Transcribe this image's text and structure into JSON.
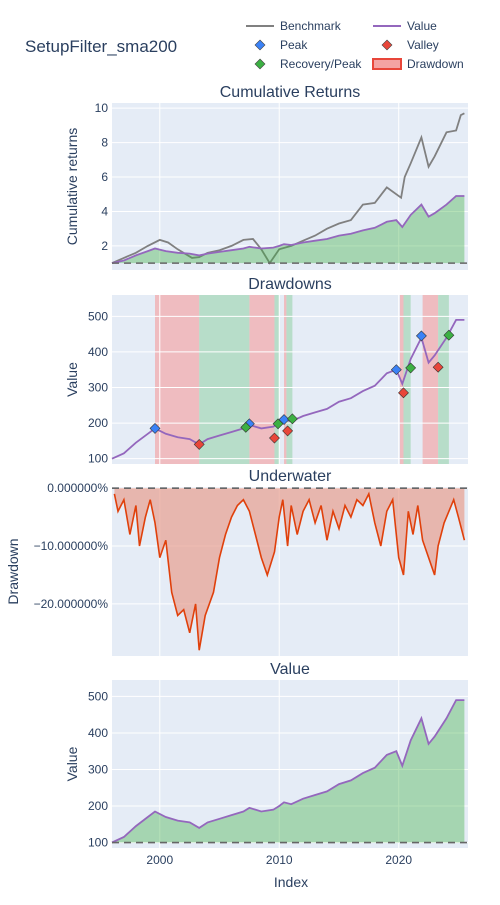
{
  "title": "SetupFilter_sma200",
  "legend": [
    {
      "label": "Benchmark",
      "kind": "line",
      "color": "#808080"
    },
    {
      "label": "Value",
      "kind": "line",
      "color": "#9467bd"
    },
    {
      "label": "Peak",
      "kind": "diamond",
      "color": "#3b82f6"
    },
    {
      "label": "Valley",
      "kind": "diamond",
      "color": "#e8463a"
    },
    {
      "label": "Recovery/Peak",
      "kind": "diamond",
      "color": "#3cb043"
    },
    {
      "label": "Drawdown",
      "kind": "band",
      "color": "#e8463a"
    }
  ],
  "colors": {
    "plot_bg": "#e5ecf6",
    "grid": "#ffffff",
    "value": "#9467bd",
    "benchmark": "#808080",
    "fill_green": "#3cb043",
    "drawdown": "#e0400b",
    "peak": "#3b82f6",
    "valley": "#e8463a",
    "recovery": "#3cb043",
    "band_red": "#f4a3a3",
    "band_green": "#9ed6b0",
    "text": "#2a3f5f"
  },
  "x_axis": {
    "label": "Index",
    "range": [
      1996,
      2025.8
    ],
    "ticks": [
      2000,
      2010,
      2020
    ]
  },
  "chart_data": [
    {
      "type": "line",
      "title": "Cumulative Returns",
      "ylabel": "Cumulative returns",
      "ylim": [
        0.6,
        10.3
      ],
      "yticks": [
        2,
        4,
        6,
        8,
        10
      ],
      "baseline": 1,
      "series": [
        {
          "name": "Benchmark",
          "x": [
            1996,
            1997,
            1998,
            1999,
            2000,
            2000.7,
            2001.5,
            2002.7,
            2003.3,
            2004,
            2005,
            2006,
            2007,
            2007.8,
            2008.5,
            2009.2,
            2010,
            2011,
            2012,
            2013,
            2014,
            2015,
            2016,
            2017,
            2018,
            2019,
            2020.2,
            2020.5,
            2021,
            2021.9,
            2022.5,
            2023,
            2024,
            2024.8,
            2025.2,
            2025.5
          ],
          "y": [
            1.0,
            1.3,
            1.6,
            2.0,
            2.35,
            2.2,
            1.8,
            1.3,
            1.35,
            1.6,
            1.75,
            2.0,
            2.35,
            2.4,
            1.8,
            1.0,
            1.8,
            2.0,
            2.3,
            2.6,
            3.0,
            3.3,
            3.5,
            4.4,
            4.5,
            5.4,
            4.8,
            6.0,
            6.8,
            8.3,
            6.6,
            7.2,
            8.6,
            8.7,
            9.6,
            9.7
          ]
        },
        {
          "name": "Value",
          "x": [
            1996,
            1997,
            1998,
            1999,
            1999.6,
            2000.5,
            2001.5,
            2002.5,
            2003.3,
            2004,
            2005,
            2006,
            2007,
            2007.5,
            2008.5,
            2009.5,
            2010,
            2010.4,
            2011,
            2012,
            2013,
            2014,
            2015,
            2016,
            2017,
            2018,
            2019,
            2019.8,
            2020.3,
            2021,
            2021.9,
            2022.5,
            2023,
            2024,
            2024.8,
            2025.5
          ],
          "y": [
            1.0,
            1.15,
            1.45,
            1.7,
            1.85,
            1.7,
            1.6,
            1.55,
            1.45,
            1.55,
            1.65,
            1.75,
            1.85,
            1.95,
            1.85,
            1.9,
            2.0,
            2.1,
            2.05,
            2.2,
            2.3,
            2.4,
            2.6,
            2.7,
            2.9,
            3.05,
            3.4,
            3.5,
            3.1,
            3.8,
            4.4,
            3.7,
            3.9,
            4.4,
            4.9,
            4.9
          ]
        }
      ]
    },
    {
      "type": "line",
      "title": "Drawdowns",
      "ylabel": "Value",
      "ylim": [
        85,
        560
      ],
      "yticks": [
        100,
        200,
        300,
        400,
        500
      ],
      "drawdown_periods": [
        [
          1999.6,
          2003.3
        ],
        [
          2007.5,
          2009.6
        ],
        [
          2010.4,
          2010.6
        ],
        [
          2020.1,
          2020.4
        ],
        [
          2022.0,
          2023.3
        ]
      ],
      "recovery_periods": [
        [
          2003.3,
          2007.5
        ],
        [
          2009.6,
          2010.0
        ],
        [
          2010.6,
          2011.1
        ],
        [
          2020.4,
          2021.0
        ],
        [
          2023.3,
          2024.2
        ]
      ],
      "series": [
        {
          "name": "Value",
          "x": [
            1996,
            1997,
            1998,
            1999,
            1999.6,
            2000.5,
            2001.5,
            2002.5,
            2003.3,
            2004,
            2005,
            2006,
            2007,
            2007.5,
            2008.5,
            2009.5,
            2010,
            2010.4,
            2011,
            2012,
            2013,
            2014,
            2015,
            2016,
            2017,
            2018,
            2019,
            2019.8,
            2020.3,
            2021,
            2021.9,
            2022.5,
            2023,
            2024,
            2024.8,
            2025.5
          ],
          "y": [
            100,
            115,
            145,
            170,
            185,
            170,
            160,
            155,
            140,
            155,
            165,
            175,
            185,
            195,
            185,
            190,
            200,
            210,
            205,
            220,
            230,
            240,
            260,
            270,
            290,
            305,
            340,
            350,
            310,
            380,
            440,
            370,
            390,
            440,
            490,
            490
          ]
        }
      ],
      "peaks": {
        "x": [
          1999.6,
          2007.5,
          2010.4,
          2019.8,
          2021.9
        ],
        "y": [
          185,
          198,
          210,
          350,
          445
        ]
      },
      "valleys": {
        "x": [
          2003.3,
          2009.6,
          2010.7,
          2020.4,
          2023.3
        ],
        "y": [
          140,
          158,
          178,
          285,
          357
        ]
      },
      "recoveries": {
        "x": [
          2007.2,
          2009.9,
          2011.1,
          2021.0,
          2024.2
        ],
        "y": [
          188,
          198,
          212,
          355,
          447
        ]
      }
    },
    {
      "type": "area",
      "title": "Underwater",
      "ylabel": "Drawdown",
      "ylim": [
        -0.29,
        0.002
      ],
      "yticks": [
        0,
        -0.1,
        -0.2
      ],
      "ytick_labels": [
        "0.000000%",
        "−10.000000%",
        "−20.000000%"
      ],
      "series": [
        {
          "name": "Drawdown",
          "x": [
            1996.2,
            1996.5,
            1997,
            1997.5,
            1998,
            1998.3,
            1998.8,
            1999.2,
            1999.6,
            2000,
            2000.5,
            2001,
            2001.5,
            2002,
            2002.5,
            2003,
            2003.3,
            2003.8,
            2004.5,
            2005,
            2005.5,
            2006,
            2006.5,
            2007,
            2007.5,
            2008,
            2008.5,
            2009,
            2009.6,
            2010,
            2010.3,
            2010.7,
            2011,
            2011.5,
            2012,
            2012.5,
            2013,
            2013.5,
            2014,
            2014.5,
            2015,
            2015.5,
            2016,
            2016.5,
            2017,
            2017.5,
            2018,
            2018.5,
            2019,
            2019.5,
            2020,
            2020.4,
            2020.8,
            2021.2,
            2021.6,
            2022,
            2022.5,
            2023,
            2023.3,
            2023.8,
            2024.2,
            2024.6,
            2025,
            2025.5
          ],
          "y": [
            -0.01,
            -0.04,
            -0.02,
            -0.08,
            -0.03,
            -0.1,
            -0.05,
            -0.02,
            -0.06,
            -0.12,
            -0.09,
            -0.18,
            -0.22,
            -0.21,
            -0.25,
            -0.2,
            -0.28,
            -0.22,
            -0.18,
            -0.12,
            -0.08,
            -0.05,
            -0.03,
            -0.02,
            -0.04,
            -0.08,
            -0.12,
            -0.15,
            -0.11,
            -0.05,
            -0.02,
            -0.1,
            -0.03,
            -0.08,
            -0.04,
            -0.02,
            -0.06,
            -0.03,
            -0.09,
            -0.04,
            -0.07,
            -0.03,
            -0.05,
            -0.02,
            -0.03,
            -0.01,
            -0.06,
            -0.1,
            -0.04,
            -0.02,
            -0.12,
            -0.15,
            -0.04,
            -0.08,
            -0.03,
            -0.09,
            -0.12,
            -0.15,
            -0.1,
            -0.06,
            -0.04,
            -0.02,
            -0.05,
            -0.09
          ]
        }
      ]
    },
    {
      "type": "area",
      "title": "Value",
      "ylabel": "Value",
      "ylim": [
        85,
        545
      ],
      "yticks": [
        100,
        200,
        300,
        400,
        500
      ],
      "baseline": 100,
      "series": [
        {
          "name": "Value",
          "x": [
            1996,
            1997,
            1998,
            1999,
            1999.6,
            2000.5,
            2001.5,
            2002.5,
            2003.3,
            2004,
            2005,
            2006,
            2007,
            2007.5,
            2008.5,
            2009.5,
            2010,
            2010.4,
            2011,
            2012,
            2013,
            2014,
            2015,
            2016,
            2017,
            2018,
            2019,
            2019.8,
            2020.3,
            2021,
            2021.9,
            2022.5,
            2023,
            2024,
            2024.8,
            2025.5
          ],
          "y": [
            100,
            115,
            145,
            170,
            185,
            170,
            160,
            155,
            140,
            155,
            165,
            175,
            185,
            195,
            185,
            190,
            200,
            210,
            205,
            220,
            230,
            240,
            260,
            270,
            290,
            305,
            340,
            350,
            310,
            380,
            440,
            370,
            390,
            440,
            490,
            490
          ]
        }
      ]
    }
  ]
}
